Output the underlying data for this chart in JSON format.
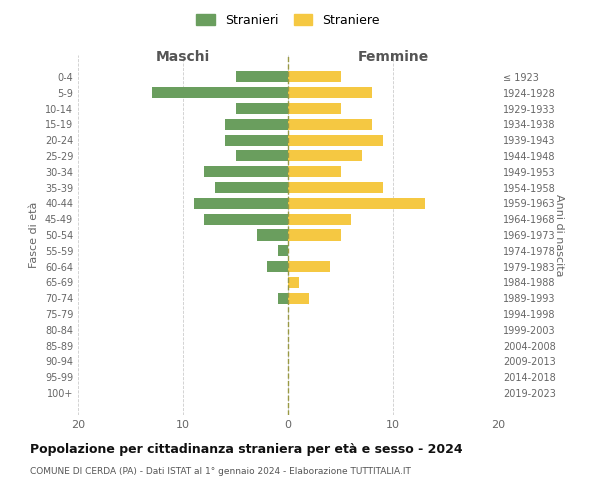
{
  "age_groups": [
    "0-4",
    "5-9",
    "10-14",
    "15-19",
    "20-24",
    "25-29",
    "30-34",
    "35-39",
    "40-44",
    "45-49",
    "50-54",
    "55-59",
    "60-64",
    "65-69",
    "70-74",
    "75-79",
    "80-84",
    "85-89",
    "90-94",
    "95-99",
    "100+"
  ],
  "birth_years": [
    "2019-2023",
    "2014-2018",
    "2009-2013",
    "2004-2008",
    "1999-2003",
    "1994-1998",
    "1989-1993",
    "1984-1988",
    "1979-1983",
    "1974-1978",
    "1969-1973",
    "1964-1968",
    "1959-1963",
    "1954-1958",
    "1949-1953",
    "1944-1948",
    "1939-1943",
    "1934-1938",
    "1929-1933",
    "1924-1928",
    "≤ 1923"
  ],
  "maschi": [
    5,
    13,
    5,
    6,
    6,
    5,
    8,
    7,
    9,
    8,
    3,
    1,
    2,
    0,
    1,
    0,
    0,
    0,
    0,
    0,
    0
  ],
  "femmine": [
    5,
    8,
    5,
    8,
    9,
    7,
    5,
    9,
    13,
    6,
    5,
    0,
    4,
    1,
    2,
    0,
    0,
    0,
    0,
    0,
    0
  ],
  "maschi_color": "#6a9e5e",
  "femmine_color": "#f5c842",
  "title": "Popolazione per cittadinanza straniera per età e sesso - 2024",
  "subtitle": "COMUNE DI CERDA (PA) - Dati ISTAT al 1° gennaio 2024 - Elaborazione TUTTITALIA.IT",
  "xlabel_left": "Maschi",
  "xlabel_right": "Femmine",
  "ylabel_left": "Fasce di età",
  "ylabel_right": "Anni di nascita",
  "legend_maschi": "Stranieri",
  "legend_femmine": "Straniere",
  "xlim": 20,
  "bar_height": 0.7,
  "background_color": "#ffffff",
  "grid_color": "#cccccc"
}
